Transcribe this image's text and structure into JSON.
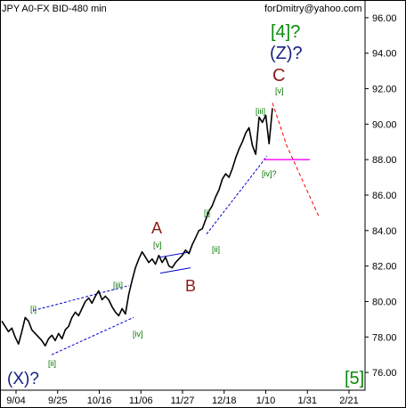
{
  "chart_data": {
    "type": "line",
    "title": "JPY A0-FX BID-480 min",
    "watermark": "forDmitry@yahoo.com",
    "x_tick_labels": [
      "9/04",
      "9/25",
      "10/16",
      "11/06",
      "11/27",
      "12/18",
      "1/10",
      "1/31",
      "2/21"
    ],
    "ylim": [
      75.0,
      97.0
    ],
    "y_ticks": [
      "76.00",
      "78.00",
      "80.00",
      "82.00",
      "84.00",
      "86.00",
      "88.00",
      "90.00",
      "92.00",
      "94.00",
      "96.00"
    ],
    "series": [
      {
        "values": [
          78.9,
          78.6,
          78.3,
          78.5,
          78.0,
          77.6,
          78.3,
          79.1,
          78.9,
          78.4,
          78.2,
          78.0,
          77.8,
          77.5,
          77.9,
          78.1,
          77.8,
          78.2,
          77.9,
          78.4,
          78.6,
          79.1,
          79.4,
          79.2,
          79.6,
          80.0,
          80.2,
          79.9,
          80.3,
          80.6,
          80.1,
          80.3,
          80.1,
          79.7,
          79.4,
          79.2,
          79.6,
          79.3,
          80.4,
          81.2,
          81.9,
          82.4,
          82.8,
          82.5,
          82.2,
          82.4,
          82.1,
          82.6,
          82.2,
          82.5,
          82.0,
          81.9,
          82.2,
          82.4,
          82.6,
          82.9,
          82.7,
          83.2,
          83.6,
          84.0,
          84.1,
          84.6,
          85.1,
          85.4,
          85.9,
          86.3,
          86.9,
          87.2,
          87.0,
          87.5,
          88.1,
          88.6,
          89.0,
          89.5,
          89.8,
          88.8,
          88.3,
          90.4,
          90.1,
          90.5,
          88.9,
          90.9
        ],
        "color": "#000000"
      }
    ],
    "forecast_path": {
      "values": [
        91.2,
        88.8,
        84.8
      ],
      "color": "#ff0000"
    },
    "level_line": {
      "value": 88.0,
      "color": "#ff00ff"
    },
    "channel_lines_color": "#0000cc",
    "labels": {
      "X": "(X)?",
      "ii": "[ii]",
      "i": "[i]",
      "iii": "[iii]",
      "iv": "[iv]",
      "A": "A",
      "v_a": "[v]",
      "B": "B",
      "i2": "[i]",
      "ii2": "[ii]",
      "iii2": "[iii]",
      "iv2": "[iv]?",
      "v2": "[v]",
      "C": "C",
      "Z": "(Z)?",
      "four": "[4]?",
      "five": "[5]"
    },
    "colors": {
      "green_label": "#007700",
      "dark_red_label": "#8b1a1a",
      "navy_label": "#1a237e",
      "big_green": "#0a8a0a"
    }
  }
}
